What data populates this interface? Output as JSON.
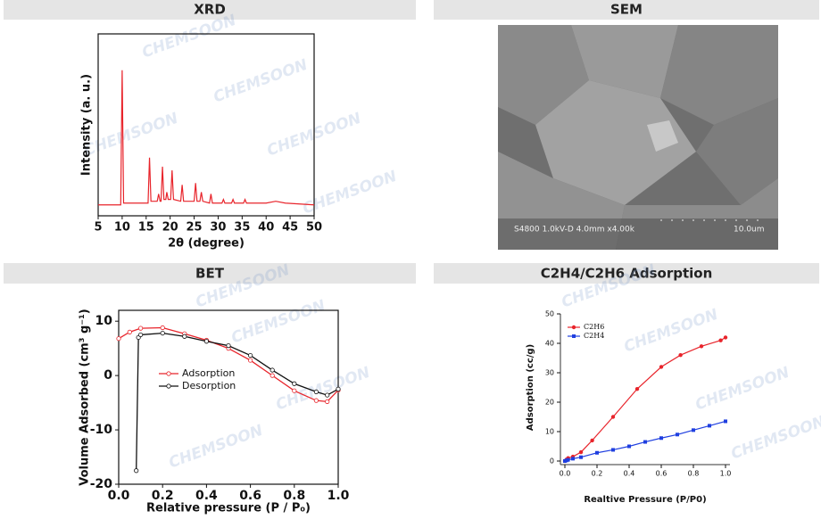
{
  "watermark": "CHEMSOON",
  "panels": [
    {
      "title": "XRD",
      "chart": {
        "type": "line",
        "x_label": "2θ (degree)",
        "y_label": "Intensity (a. u.)",
        "xlim": [
          5,
          50
        ],
        "xticks": [
          5,
          10,
          15,
          20,
          25,
          30,
          35,
          40,
          45,
          50
        ],
        "ylim": [
          0,
          100
        ],
        "series": [
          {
            "color": "#e8242b",
            "x": [
              5,
              9.7,
              10,
              10.3,
              15.4,
              15.7,
              16,
              17.3,
              17.6,
              17.9,
              18.1,
              18.4,
              18.7,
              19.1,
              19.3,
              19.6,
              20.1,
              20.4,
              20.7,
              22.2,
              22.5,
              22.8,
              25,
              25.3,
              25.6,
              26.2,
              26.5,
              26.8,
              28.2,
              28.5,
              28.8,
              30.8,
              31.1,
              31.4,
              32.8,
              33.1,
              33.4,
              35.3,
              35.6,
              35.9,
              40,
              42,
              44,
              50
            ],
            "values": [
              6,
              6,
              80,
              7,
              7,
              32,
              8,
              8,
              12,
              8,
              8,
              27,
              9,
              9,
              13,
              9,
              9,
              25,
              9,
              8,
              17,
              8,
              8,
              18,
              8,
              8,
              13,
              8,
              7,
              12,
              7,
              7,
              9,
              7,
              7,
              9,
              7,
              7,
              9,
              7,
              7,
              8,
              7,
              6
            ]
          }
        ]
      }
    },
    {
      "title": "SEM",
      "image": {
        "caption": "S4800 1.0kV-D 4.0mm x4.00k",
        "scale_bar": "10.0um"
      }
    },
    {
      "title": "BET",
      "chart": {
        "type": "line",
        "x_label": "Relative pressure (P / P₀)",
        "y_label": "Volume Adsorbed (cm³ g⁻¹)",
        "xlim": [
          0,
          1
        ],
        "xticks": [
          {
            "value": 0,
            "label": "0.0"
          },
          0.2,
          0.4,
          0.6,
          0.8,
          {
            "value": 1,
            "label": "1.0"
          }
        ],
        "ylim": [
          -20,
          12
        ],
        "yticks": [
          -20,
          -10,
          0,
          10
        ],
        "marker": "open-circle",
        "series": [
          {
            "name": "Adsorption",
            "color": "#e8242b",
            "x": [
              0,
              0.05,
              0.1,
              0.2,
              0.3,
              0.4,
              0.5,
              0.6,
              0.7,
              0.8,
              0.9,
              0.95,
              1.0
            ],
            "values": [
              6.8,
              8,
              8.7,
              8.8,
              7.7,
              6.5,
              5,
              2.8,
              0,
              -2.8,
              -4.6,
              -4.8,
              -2.7
            ]
          },
          {
            "name": "Desorption",
            "color": "#111111",
            "x": [
              0.08,
              0.09,
              0.1,
              0.2,
              0.3,
              0.4,
              0.5,
              0.6,
              0.7,
              0.8,
              0.9,
              0.95,
              1.0
            ],
            "values": [
              -17.5,
              7,
              7.5,
              7.8,
              7.2,
              6.3,
              5.5,
              3.7,
              1,
              -1.5,
              -3,
              -3.6,
              -2.5
            ]
          }
        ]
      }
    },
    {
      "title": "C2H4/C2H6 Adsorption",
      "chart": {
        "type": "line",
        "x_label": "Realtive Pressure (P/P0)",
        "y_label": "Adsorption (cc/g)",
        "xlim": [
          0,
          1
        ],
        "xticks": [
          {
            "value": 0,
            "label": "0.0"
          },
          0.2,
          0.4,
          0.6,
          0.8,
          {
            "value": 1,
            "label": "1.0"
          }
        ],
        "ylim": [
          0,
          50
        ],
        "yticks": [
          0,
          10,
          20,
          30,
          40,
          50
        ],
        "marker": "filled",
        "series": [
          {
            "name": "C2H6",
            "color": "#e8242b",
            "shape": "circle",
            "x": [
              0,
              0.01,
              0.02,
              0.05,
              0.1,
              0.17,
              0.3,
              0.45,
              0.6,
              0.72,
              0.85,
              0.97,
              1.0
            ],
            "values": [
              0,
              0.5,
              1,
              1.5,
              3,
              7,
              15,
              24.5,
              32,
              36,
              39,
              41,
              42
            ]
          },
          {
            "name": "C2H4",
            "color": "#1f3fe0",
            "shape": "square",
            "x": [
              0,
              0.01,
              0.02,
              0.05,
              0.1,
              0.2,
              0.3,
              0.4,
              0.5,
              0.6,
              0.7,
              0.8,
              0.9,
              1.0
            ],
            "values": [
              0,
              0.2,
              0.4,
              0.8,
              1.3,
              2.8,
              3.8,
              5,
              6.5,
              7.8,
              9,
              10.5,
              12,
              13.5
            ]
          }
        ]
      }
    }
  ]
}
